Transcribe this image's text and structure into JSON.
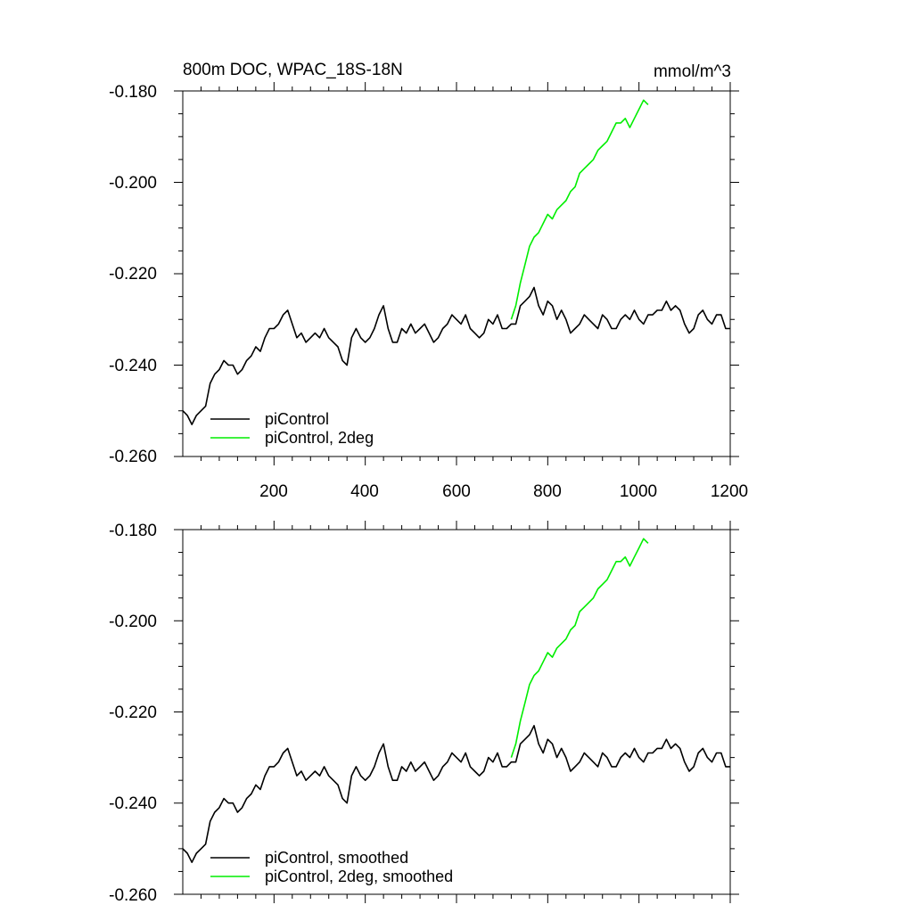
{
  "chart_data": [
    {
      "type": "line",
      "title": "800m DOC, WPAC_18S-18N",
      "units": "mmol/m^3",
      "xlim": [
        0,
        1200
      ],
      "ylim": [
        -0.26,
        -0.18
      ],
      "xticks": [
        200,
        400,
        600,
        800,
        1000,
        1200
      ],
      "xtick_labels": [
        "200",
        "400",
        "600",
        "800",
        "1000",
        "1200"
      ],
      "yticks": [
        -0.18,
        -0.2,
        -0.22,
        -0.24,
        -0.26
      ],
      "ytick_labels": [
        "-0.180",
        "-0.200",
        "-0.220",
        "-0.240",
        "-0.260"
      ],
      "legend_position": "lower-left",
      "series": [
        {
          "name": "piControl",
          "color": "#000000",
          "x": [
            0,
            10,
            20,
            30,
            40,
            50,
            60,
            70,
            80,
            90,
            100,
            110,
            120,
            130,
            140,
            150,
            160,
            170,
            180,
            190,
            200,
            210,
            220,
            230,
            240,
            250,
            260,
            270,
            280,
            290,
            300,
            310,
            320,
            330,
            340,
            350,
            360,
            370,
            380,
            390,
            400,
            410,
            420,
            430,
            440,
            450,
            460,
            470,
            480,
            490,
            500,
            510,
            520,
            530,
            540,
            550,
            560,
            570,
            580,
            590,
            600,
            610,
            620,
            630,
            640,
            650,
            660,
            670,
            680,
            690,
            700,
            710,
            720,
            730,
            740,
            750,
            760,
            770,
            780,
            790,
            800,
            810,
            820,
            830,
            840,
            850,
            860,
            870,
            880,
            890,
            900,
            910,
            920,
            930,
            940,
            950,
            960,
            970,
            980,
            990,
            1000,
            1010,
            1020,
            1030,
            1040,
            1050,
            1060,
            1070,
            1080,
            1090,
            1100,
            1110,
            1120,
            1130,
            1140,
            1150,
            1160,
            1170,
            1180,
            1190,
            1200
          ],
          "y": [
            -0.25,
            -0.251,
            -0.253,
            -0.251,
            -0.25,
            -0.249,
            -0.244,
            -0.242,
            -0.241,
            -0.239,
            -0.24,
            -0.24,
            -0.242,
            -0.241,
            -0.239,
            -0.238,
            -0.236,
            -0.237,
            -0.234,
            -0.232,
            -0.232,
            -0.231,
            -0.229,
            -0.228,
            -0.231,
            -0.234,
            -0.233,
            -0.235,
            -0.234,
            -0.233,
            -0.234,
            -0.232,
            -0.234,
            -0.235,
            -0.236,
            -0.239,
            -0.24,
            -0.234,
            -0.232,
            -0.234,
            -0.235,
            -0.234,
            -0.232,
            -0.229,
            -0.227,
            -0.232,
            -0.235,
            -0.235,
            -0.232,
            -0.233,
            -0.231,
            -0.233,
            -0.232,
            -0.231,
            -0.233,
            -0.235,
            -0.234,
            -0.232,
            -0.231,
            -0.229,
            -0.23,
            -0.231,
            -0.229,
            -0.232,
            -0.233,
            -0.234,
            -0.233,
            -0.23,
            -0.231,
            -0.229,
            -0.232,
            -0.232,
            -0.231,
            -0.231,
            -0.227,
            -0.226,
            -0.225,
            -0.223,
            -0.227,
            -0.229,
            -0.226,
            -0.227,
            -0.23,
            -0.228,
            -0.23,
            -0.233,
            -0.232,
            -0.231,
            -0.229,
            -0.23,
            -0.231,
            -0.232,
            -0.229,
            -0.23,
            -0.232,
            -0.232,
            -0.23,
            -0.229,
            -0.23,
            -0.228,
            -0.23,
            -0.231,
            -0.229,
            -0.229,
            -0.228,
            -0.228,
            -0.226,
            -0.228,
            -0.227,
            -0.228,
            -0.231,
            -0.233,
            -0.232,
            -0.229,
            -0.228,
            -0.23,
            -0.231,
            -0.229,
            -0.229,
            -0.232,
            -0.232
          ]
        },
        {
          "name": "piControl, 2deg",
          "color": "#00ee00",
          "x": [
            720,
            730,
            740,
            750,
            760,
            770,
            780,
            790,
            800,
            810,
            820,
            830,
            840,
            850,
            860,
            870,
            880,
            890,
            900,
            910,
            920,
            930,
            940,
            950,
            960,
            970,
            980,
            990,
            1000,
            1010,
            1020
          ],
          "y": [
            -0.23,
            -0.227,
            -0.222,
            -0.218,
            -0.214,
            -0.212,
            -0.211,
            -0.209,
            -0.207,
            -0.208,
            -0.206,
            -0.205,
            -0.204,
            -0.202,
            -0.201,
            -0.198,
            -0.197,
            -0.196,
            -0.195,
            -0.193,
            -0.192,
            -0.191,
            -0.189,
            -0.187,
            -0.187,
            -0.186,
            -0.188,
            -0.186,
            -0.184,
            -0.182,
            -0.183
          ]
        }
      ]
    },
    {
      "type": "line",
      "xlim": [
        0,
        1200
      ],
      "ylim": [
        -0.26,
        -0.18
      ],
      "yticks": [
        -0.18,
        -0.2,
        -0.22,
        -0.24,
        -0.26
      ],
      "ytick_labels": [
        "-0.180",
        "-0.200",
        "-0.220",
        "-0.240",
        "-0.260"
      ],
      "legend_position": "lower-left",
      "series": [
        {
          "name": "piControl, smoothed",
          "color": "#000000",
          "x": [
            0,
            10,
            20,
            30,
            40,
            50,
            60,
            70,
            80,
            90,
            100,
            110,
            120,
            130,
            140,
            150,
            160,
            170,
            180,
            190,
            200,
            210,
            220,
            230,
            240,
            250,
            260,
            270,
            280,
            290,
            300,
            310,
            320,
            330,
            340,
            350,
            360,
            370,
            380,
            390,
            400,
            410,
            420,
            430,
            440,
            450,
            460,
            470,
            480,
            490,
            500,
            510,
            520,
            530,
            540,
            550,
            560,
            570,
            580,
            590,
            600,
            610,
            620,
            630,
            640,
            650,
            660,
            670,
            680,
            690,
            700,
            710,
            720,
            730,
            740,
            750,
            760,
            770,
            780,
            790,
            800,
            810,
            820,
            830,
            840,
            850,
            860,
            870,
            880,
            890,
            900,
            910,
            920,
            930,
            940,
            950,
            960,
            970,
            980,
            990,
            1000,
            1010,
            1020,
            1030,
            1040,
            1050,
            1060,
            1070,
            1080,
            1090,
            1100,
            1110,
            1120,
            1130,
            1140,
            1150,
            1160,
            1170,
            1180,
            1190,
            1200
          ],
          "y": [
            -0.25,
            -0.251,
            -0.253,
            -0.251,
            -0.25,
            -0.249,
            -0.244,
            -0.242,
            -0.241,
            -0.239,
            -0.24,
            -0.24,
            -0.242,
            -0.241,
            -0.239,
            -0.238,
            -0.236,
            -0.237,
            -0.234,
            -0.232,
            -0.232,
            -0.231,
            -0.229,
            -0.228,
            -0.231,
            -0.234,
            -0.233,
            -0.235,
            -0.234,
            -0.233,
            -0.234,
            -0.232,
            -0.234,
            -0.235,
            -0.236,
            -0.239,
            -0.24,
            -0.234,
            -0.232,
            -0.234,
            -0.235,
            -0.234,
            -0.232,
            -0.229,
            -0.227,
            -0.232,
            -0.235,
            -0.235,
            -0.232,
            -0.233,
            -0.231,
            -0.233,
            -0.232,
            -0.231,
            -0.233,
            -0.235,
            -0.234,
            -0.232,
            -0.231,
            -0.229,
            -0.23,
            -0.231,
            -0.229,
            -0.232,
            -0.233,
            -0.234,
            -0.233,
            -0.23,
            -0.231,
            -0.229,
            -0.232,
            -0.232,
            -0.231,
            -0.231,
            -0.227,
            -0.226,
            -0.225,
            -0.223,
            -0.227,
            -0.229,
            -0.226,
            -0.227,
            -0.23,
            -0.228,
            -0.23,
            -0.233,
            -0.232,
            -0.231,
            -0.229,
            -0.23,
            -0.231,
            -0.232,
            -0.229,
            -0.23,
            -0.232,
            -0.232,
            -0.23,
            -0.229,
            -0.23,
            -0.228,
            -0.23,
            -0.231,
            -0.229,
            -0.229,
            -0.228,
            -0.228,
            -0.226,
            -0.228,
            -0.227,
            -0.228,
            -0.231,
            -0.233,
            -0.232,
            -0.229,
            -0.228,
            -0.23,
            -0.231,
            -0.229,
            -0.229,
            -0.232,
            -0.232
          ]
        },
        {
          "name": "piControl, 2deg, smoothed",
          "color": "#00ee00",
          "x": [
            720,
            730,
            740,
            750,
            760,
            770,
            780,
            790,
            800,
            810,
            820,
            830,
            840,
            850,
            860,
            870,
            880,
            890,
            900,
            910,
            920,
            930,
            940,
            950,
            960,
            970,
            980,
            990,
            1000,
            1010,
            1020
          ],
          "y": [
            -0.23,
            -0.227,
            -0.222,
            -0.218,
            -0.214,
            -0.212,
            -0.211,
            -0.209,
            -0.207,
            -0.208,
            -0.206,
            -0.205,
            -0.204,
            -0.202,
            -0.201,
            -0.198,
            -0.197,
            -0.196,
            -0.195,
            -0.193,
            -0.192,
            -0.191,
            -0.189,
            -0.187,
            -0.187,
            -0.186,
            -0.188,
            -0.186,
            -0.184,
            -0.182,
            -0.183
          ]
        }
      ]
    }
  ]
}
